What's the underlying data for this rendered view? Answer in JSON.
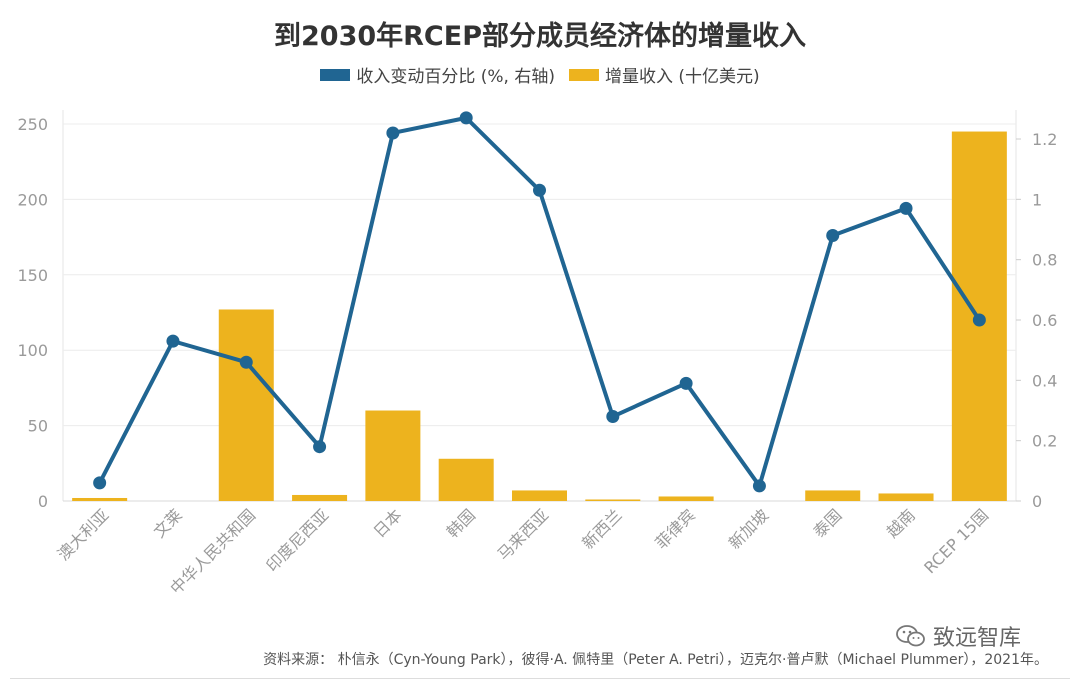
{
  "title": "到2030年RCEP部分成员经济体的增量收入",
  "legend": {
    "line_label": "收入变动百分比 (%, 右轴)",
    "bar_label": "增量收入 (十亿美元)"
  },
  "source": "资料来源： 朴信永（Cyn-Young Park），彼得·A. 佩特里（Peter A. Petri），迈克尔·普卢默（Michael Plummer），2021年。",
  "watermark": "致远智库",
  "chart_data": {
    "type": "bar",
    "categories": [
      "澳大利亚",
      "文莱",
      "中华人民共和国",
      "印度尼西亚",
      "日本",
      "韩国",
      "马来西亚",
      "新西兰",
      "菲律宾",
      "新加坡",
      "泰国",
      "越南",
      "RCEP 15国"
    ],
    "series": [
      {
        "name": "增量收入 (十亿美元)",
        "type": "bar",
        "axis": "left",
        "color": "#EDB31E",
        "values": [
          2,
          0,
          127,
          4,
          60,
          28,
          7,
          1,
          3,
          0,
          7,
          5,
          245
        ]
      },
      {
        "name": "收入变动百分比 (%, 右轴)",
        "type": "line",
        "axis": "right",
        "color": "#206592",
        "values": [
          0.06,
          0.53,
          0.46,
          0.18,
          1.22,
          1.27,
          1.03,
          0.28,
          0.39,
          0.05,
          0.88,
          0.97,
          0.6
        ]
      }
    ],
    "ylim_left": [
      0,
      260
    ],
    "yticks_left": [
      0,
      50,
      100,
      150,
      200,
      250
    ],
    "ylim_right": [
      0,
      1.3
    ],
    "yticks_right": [
      0,
      0.2,
      0.4,
      0.6,
      0.8,
      1,
      1.2
    ],
    "grid": true,
    "legend_position": "top"
  }
}
